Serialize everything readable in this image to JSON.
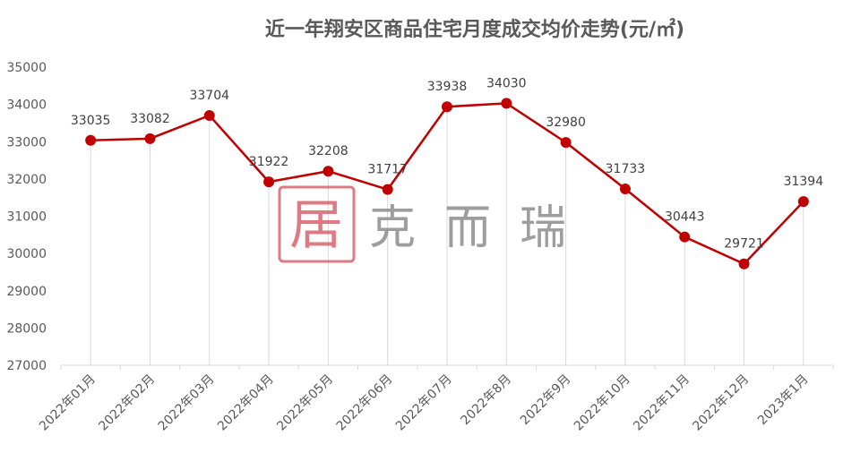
{
  "chart_data": {
    "type": "line",
    "title": "近一年翔安区商品住宅月度成交均价走势(元/㎡)",
    "categories": [
      "2022年01月",
      "2022年02月",
      "2022年03月",
      "2022年04月",
      "2022年05月",
      "2022年06月",
      "2022年07月",
      "2022年8月",
      "2022年9月",
      "2022年10月",
      "2022年11月",
      "2022年12月",
      "2023年1月"
    ],
    "values": [
      33035,
      33082,
      33704,
      31922,
      32208,
      31717,
      33938,
      34030,
      32980,
      31733,
      30443,
      29721,
      31394
    ],
    "ylim": [
      27000,
      35000
    ],
    "yticks": [
      27000,
      28000,
      29000,
      30000,
      31000,
      32000,
      33000,
      34000,
      35000
    ],
    "grid": "vertical drop lines",
    "legend": "none",
    "data_labels": true,
    "colors": {
      "line": "#c00000",
      "marker": "#c00000"
    }
  },
  "watermark": {
    "logo_text": "克而瑞",
    "logo_color": "#d9636f",
    "text_color": "#8c8c8c"
  }
}
